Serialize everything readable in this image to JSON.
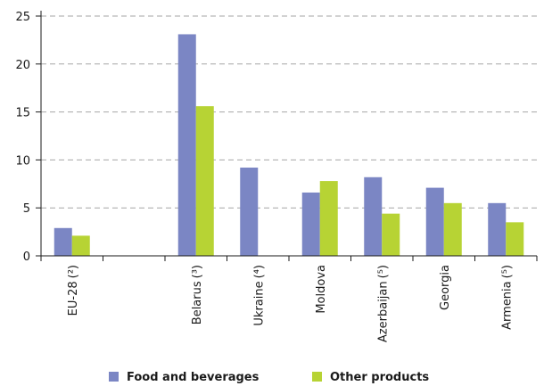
{
  "chart_data": {
    "type": "bar",
    "title": "",
    "xlabel": "",
    "ylabel": "",
    "ylim": [
      0,
      25
    ],
    "yticks": [
      0,
      5,
      10,
      15,
      20,
      25
    ],
    "grid": true,
    "legend_position": "bottom",
    "categories": [
      {
        "label": "EU-28",
        "note": "(²)"
      },
      {
        "label": "",
        "note": ""
      },
      {
        "label": "Belarus",
        "note": "(³)"
      },
      {
        "label": "Ukraine",
        "note": "(⁴)"
      },
      {
        "label": "Moldova",
        "note": ""
      },
      {
        "label": "Azerbaijan",
        "note": "(⁵)"
      },
      {
        "label": "Georgia",
        "note": ""
      },
      {
        "label": "Armenia",
        "note": "(⁵)"
      }
    ],
    "series": [
      {
        "name": "Food and beverages",
        "color": "#7b86c4",
        "values": [
          2.9,
          null,
          23.1,
          9.2,
          6.6,
          8.2,
          7.1,
          5.5
        ]
      },
      {
        "name": "Other products",
        "color": "#b7d334",
        "values": [
          2.1,
          null,
          15.6,
          null,
          7.8,
          4.4,
          5.5,
          3.5
        ]
      }
    ]
  }
}
